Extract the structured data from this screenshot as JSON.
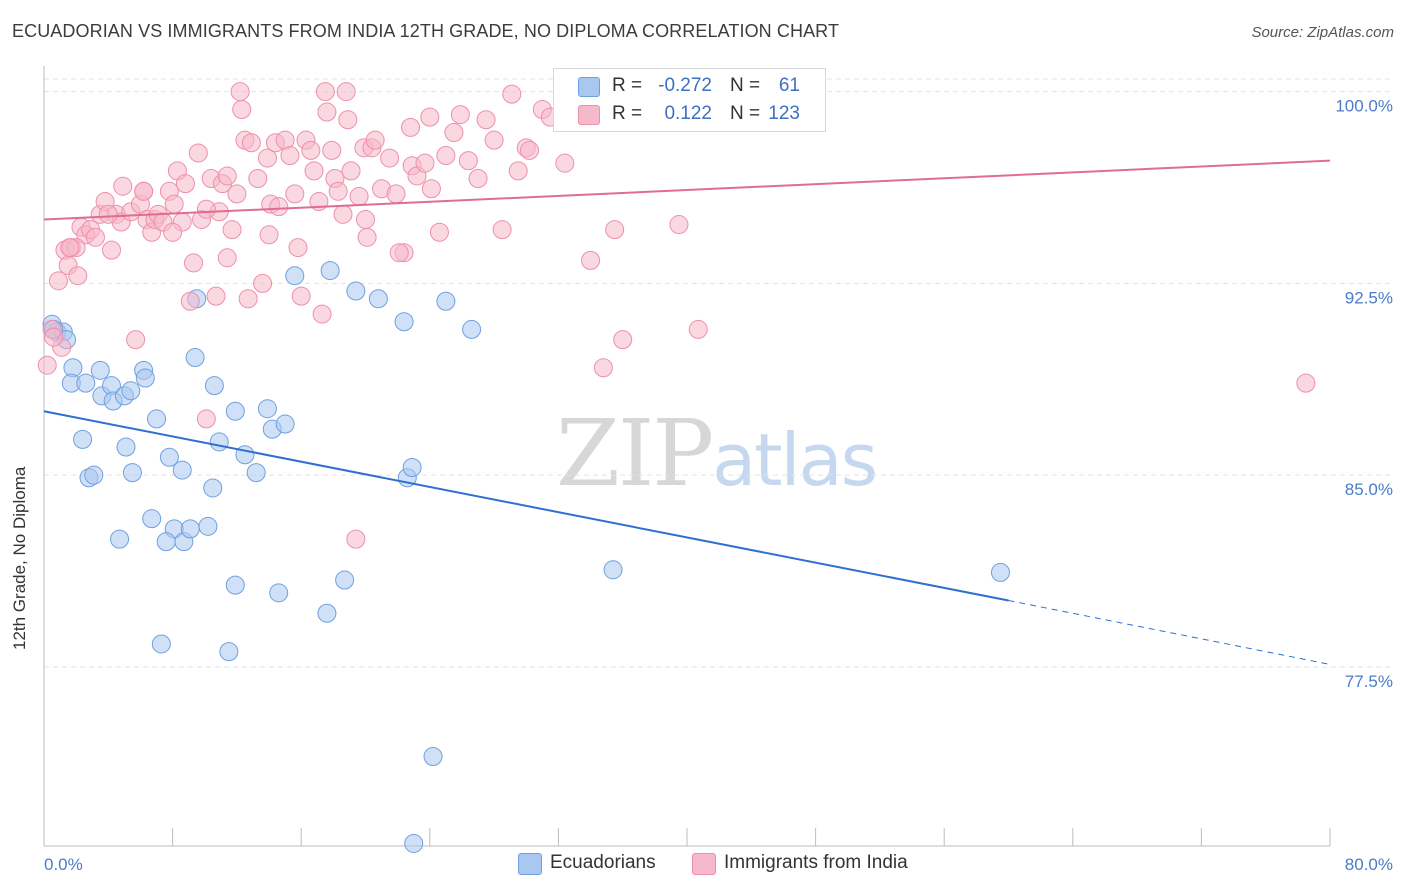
{
  "header": {
    "title": "ECUADORIAN VS IMMIGRANTS FROM INDIA 12TH GRADE, NO DIPLOMA CORRELATION CHART",
    "source": "Source: ZipAtlas.com"
  },
  "watermark": {
    "zip": "ZIP",
    "atlas": "atlas"
  },
  "stats": {
    "rows": [
      {
        "r_label": "R =",
        "r_value": "-0.272",
        "n_label": "N =",
        "n_value": "61",
        "color": "#a9c8f0"
      },
      {
        "r_label": "R =",
        "r_value": "0.122",
        "n_label": "N =",
        "n_value": "123",
        "color": "#f6b8cb"
      }
    ]
  },
  "legend": {
    "items": [
      {
        "label": "Ecuadorians",
        "color": "#a9c8f0"
      },
      {
        "label": "Immigrants from India",
        "color": "#f6b8cb"
      }
    ]
  },
  "chart_data": {
    "type": "scatter",
    "title": "ECUADORIAN VS IMMIGRANTS FROM INDIA 12TH GRADE, NO DIPLOMA CORRELATION CHART",
    "xlabel": "",
    "ylabel": "12th Grade, No Diploma",
    "xlim": [
      0,
      80
    ],
    "ylim": [
      70.5,
      101
    ],
    "x_tick_labels": [
      "0.0%",
      "80.0%"
    ],
    "y_ticks": [
      77.5,
      85.0,
      92.5,
      100.0
    ],
    "y_tick_labels": [
      "77.5%",
      "85.0%",
      "92.5%",
      "100.0%"
    ],
    "grid": true,
    "legend_position": "bottom-center",
    "series": [
      {
        "name": "Ecuadorians",
        "color": "#6fa0e0",
        "fill": "#a9c8f0",
        "line_color": "#2f6fd0",
        "trend": {
          "x0": 0,
          "y0": 87.5,
          "x1": 60,
          "y1": 80.1,
          "dash_to_x": 80,
          "dash_to_y": 77.6
        },
        "points": [
          [
            0.5,
            90.9
          ],
          [
            0.8,
            90.6
          ],
          [
            1.2,
            90.6
          ],
          [
            1.4,
            90.3
          ],
          [
            1.8,
            89.2
          ],
          [
            1.7,
            88.6
          ],
          [
            2.6,
            88.6
          ],
          [
            3.5,
            89.1
          ],
          [
            3.6,
            88.1
          ],
          [
            4.2,
            88.5
          ],
          [
            4.3,
            87.9
          ],
          [
            5.0,
            88.1
          ],
          [
            5.4,
            88.3
          ],
          [
            6.2,
            89.1
          ],
          [
            6.3,
            88.8
          ],
          [
            7.0,
            87.2
          ],
          [
            2.4,
            86.4
          ],
          [
            5.1,
            86.1
          ],
          [
            2.8,
            84.9
          ],
          [
            3.1,
            85.0
          ],
          [
            5.5,
            85.1
          ],
          [
            7.8,
            85.7
          ],
          [
            8.6,
            85.2
          ],
          [
            9.5,
            91.9
          ],
          [
            9.4,
            89.6
          ],
          [
            10.6,
            88.5
          ],
          [
            10.5,
            84.5
          ],
          [
            10.9,
            86.3
          ],
          [
            11.9,
            87.5
          ],
          [
            12.5,
            85.8
          ],
          [
            13.2,
            85.1
          ],
          [
            13.9,
            87.6
          ],
          [
            14.2,
            86.8
          ],
          [
            15.0,
            87.0
          ],
          [
            15.6,
            92.8
          ],
          [
            17.8,
            93.0
          ],
          [
            19.4,
            92.2
          ],
          [
            20.8,
            91.9
          ],
          [
            22.4,
            91.0
          ],
          [
            22.6,
            84.9
          ],
          [
            22.9,
            85.3
          ],
          [
            25.0,
            91.8
          ],
          [
            26.6,
            90.7
          ],
          [
            6.7,
            83.3
          ],
          [
            8.1,
            82.9
          ],
          [
            8.7,
            82.4
          ],
          [
            7.6,
            82.4
          ],
          [
            9.1,
            82.9
          ],
          [
            10.2,
            83.0
          ],
          [
            4.7,
            82.5
          ],
          [
            11.9,
            80.7
          ],
          [
            14.6,
            80.4
          ],
          [
            17.6,
            79.6
          ],
          [
            18.7,
            80.9
          ],
          [
            7.3,
            78.4
          ],
          [
            11.5,
            78.1
          ],
          [
            24.2,
            74.0
          ],
          [
            23.0,
            70.6
          ],
          [
            35.4,
            81.3
          ],
          [
            59.5,
            81.2
          ],
          [
            0.6,
            90.7
          ]
        ]
      },
      {
        "name": "Immigrants from India",
        "color": "#ee8fab",
        "fill": "#f6b8cb",
        "line_color": "#e06b93",
        "trend": {
          "x0": 0,
          "y0": 95.0,
          "x1": 80,
          "y1": 97.3
        },
        "points": [
          [
            0.2,
            89.3
          ],
          [
            0.5,
            90.7
          ],
          [
            0.9,
            92.6
          ],
          [
            1.1,
            90.0
          ],
          [
            1.3,
            93.8
          ],
          [
            1.5,
            93.2
          ],
          [
            1.7,
            93.9
          ],
          [
            2.1,
            92.8
          ],
          [
            2.3,
            94.7
          ],
          [
            2.6,
            94.4
          ],
          [
            2.9,
            94.6
          ],
          [
            3.2,
            94.3
          ],
          [
            3.5,
            95.2
          ],
          [
            3.8,
            95.7
          ],
          [
            4.2,
            93.8
          ],
          [
            4.5,
            95.2
          ],
          [
            4.8,
            94.9
          ],
          [
            4.9,
            96.3
          ],
          [
            5.4,
            95.3
          ],
          [
            5.7,
            90.3
          ],
          [
            6.0,
            95.6
          ],
          [
            6.2,
            96.1
          ],
          [
            6.4,
            95.0
          ],
          [
            6.7,
            94.5
          ],
          [
            6.9,
            95.0
          ],
          [
            7.1,
            95.2
          ],
          [
            7.4,
            94.9
          ],
          [
            7.8,
            96.1
          ],
          [
            8.1,
            95.6
          ],
          [
            8.3,
            96.9
          ],
          [
            8.6,
            94.9
          ],
          [
            8.8,
            96.4
          ],
          [
            9.1,
            91.8
          ],
          [
            9.3,
            93.3
          ],
          [
            9.6,
            97.6
          ],
          [
            9.8,
            95.0
          ],
          [
            10.1,
            87.2
          ],
          [
            10.4,
            96.6
          ],
          [
            10.7,
            92.0
          ],
          [
            10.9,
            95.3
          ],
          [
            11.1,
            96.4
          ],
          [
            11.4,
            96.7
          ],
          [
            11.7,
            94.6
          ],
          [
            12.0,
            96.0
          ],
          [
            12.3,
            99.3
          ],
          [
            12.5,
            98.1
          ],
          [
            12.7,
            91.9
          ],
          [
            12.9,
            98.0
          ],
          [
            13.3,
            96.6
          ],
          [
            13.6,
            92.5
          ],
          [
            13.9,
            97.4
          ],
          [
            14.1,
            95.6
          ],
          [
            14.4,
            98.0
          ],
          [
            14.6,
            95.5
          ],
          [
            15.0,
            98.1
          ],
          [
            15.3,
            97.5
          ],
          [
            15.6,
            96.0
          ],
          [
            15.8,
            93.9
          ],
          [
            16.0,
            92.0
          ],
          [
            16.3,
            98.1
          ],
          [
            16.6,
            97.7
          ],
          [
            16.8,
            96.9
          ],
          [
            17.1,
            95.7
          ],
          [
            17.3,
            91.3
          ],
          [
            17.6,
            99.2
          ],
          [
            17.9,
            97.7
          ],
          [
            18.1,
            96.6
          ],
          [
            18.3,
            96.1
          ],
          [
            18.6,
            95.2
          ],
          [
            18.9,
            98.9
          ],
          [
            19.1,
            96.9
          ],
          [
            19.4,
            82.5
          ],
          [
            19.6,
            95.9
          ],
          [
            19.9,
            97.8
          ],
          [
            20.1,
            94.3
          ],
          [
            20.4,
            97.8
          ],
          [
            20.6,
            98.1
          ],
          [
            21.0,
            96.2
          ],
          [
            21.5,
            97.4
          ],
          [
            21.9,
            96.0
          ],
          [
            22.4,
            93.7
          ],
          [
            22.9,
            97.1
          ],
          [
            23.2,
            96.7
          ],
          [
            23.7,
            97.2
          ],
          [
            24.1,
            96.2
          ],
          [
            24.6,
            94.5
          ],
          [
            25.0,
            97.5
          ],
          [
            25.5,
            98.4
          ],
          [
            25.9,
            99.1
          ],
          [
            26.4,
            97.3
          ],
          [
            27.0,
            96.6
          ],
          [
            27.5,
            98.9
          ],
          [
            28.0,
            98.1
          ],
          [
            28.5,
            94.6
          ],
          [
            29.1,
            99.9
          ],
          [
            29.5,
            96.9
          ],
          [
            30.0,
            97.8
          ],
          [
            31.0,
            99.3
          ],
          [
            31.5,
            99.0
          ],
          [
            32.4,
            97.2
          ],
          [
            34.0,
            93.4
          ],
          [
            34.8,
            89.2
          ],
          [
            35.5,
            94.6
          ],
          [
            36.0,
            90.3
          ],
          [
            39.5,
            94.8
          ],
          [
            40.7,
            90.7
          ],
          [
            78.5,
            88.6
          ],
          [
            17.5,
            100.0
          ],
          [
            18.8,
            100.0
          ],
          [
            12.2,
            100.0
          ],
          [
            22.8,
            98.6
          ],
          [
            6.2,
            96.1
          ],
          [
            8.0,
            94.5
          ],
          [
            4.0,
            95.2
          ],
          [
            2.0,
            93.9
          ],
          [
            1.6,
            93.9
          ],
          [
            24.0,
            99.0
          ],
          [
            30.2,
            97.7
          ],
          [
            32.6,
            99.2
          ],
          [
            20.0,
            95.0
          ],
          [
            22.1,
            93.7
          ],
          [
            14.0,
            94.4
          ],
          [
            10.1,
            95.4
          ],
          [
            11.4,
            93.5
          ],
          [
            0.6,
            90.4
          ]
        ]
      }
    ]
  }
}
